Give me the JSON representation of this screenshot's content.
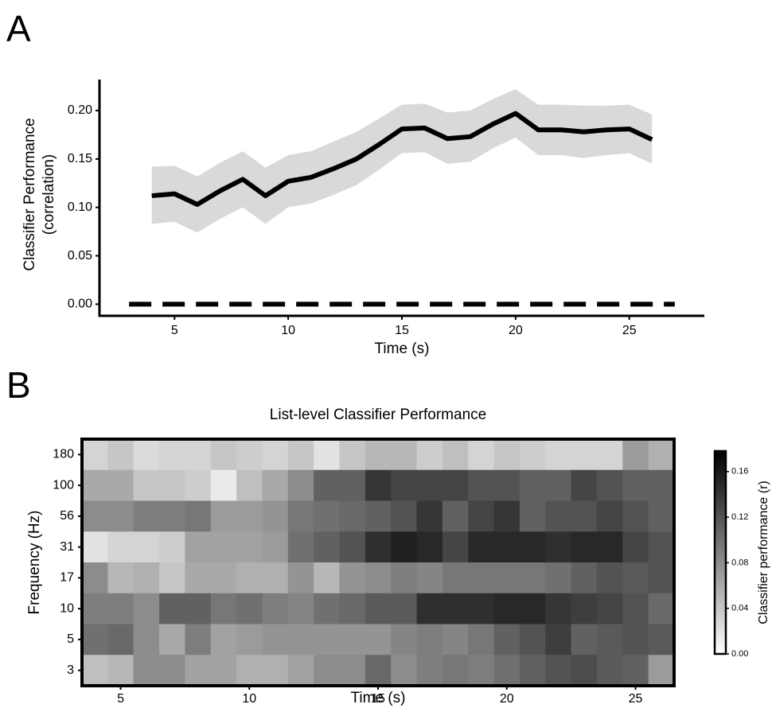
{
  "chart_data": [
    {
      "type": "line",
      "panel_label": "A",
      "xlabel": "Time (s)",
      "ylabel": [
        "Classifier Performance",
        "(correlation)"
      ],
      "x": [
        4,
        5,
        6,
        7,
        8,
        9,
        10,
        11,
        12,
        13,
        14,
        15,
        16,
        17,
        18,
        19,
        20,
        21,
        22,
        23,
        24,
        25,
        26
      ],
      "values": [
        0.112,
        0.114,
        0.103,
        0.117,
        0.129,
        0.112,
        0.127,
        0.131,
        0.14,
        0.15,
        0.165,
        0.181,
        0.182,
        0.171,
        0.173,
        0.186,
        0.197,
        0.18,
        0.18,
        0.178,
        0.18,
        0.181,
        0.17
      ],
      "upper": [
        0.142,
        0.143,
        0.132,
        0.146,
        0.158,
        0.141,
        0.154,
        0.158,
        0.168,
        0.178,
        0.192,
        0.206,
        0.207,
        0.198,
        0.2,
        0.212,
        0.222,
        0.206,
        0.206,
        0.205,
        0.205,
        0.206,
        0.196
      ],
      "lower": [
        0.083,
        0.085,
        0.074,
        0.088,
        0.1,
        0.083,
        0.1,
        0.104,
        0.113,
        0.123,
        0.139,
        0.156,
        0.157,
        0.145,
        0.147,
        0.161,
        0.172,
        0.154,
        0.154,
        0.151,
        0.154,
        0.156,
        0.145
      ],
      "color": "#000000",
      "band_color": "#d9d9d9",
      "baseline": {
        "x": [
          3,
          27
        ],
        "values": [
          0,
          0
        ]
      },
      "xlim": [
        1.7,
        28.3
      ],
      "ylim": [
        -0.012,
        0.232
      ],
      "xticks": [
        5,
        10,
        15,
        20,
        25
      ],
      "yticks": [
        {
          "value": 0,
          "label": "0.00"
        },
        {
          "value": 0.05,
          "label": "0.05"
        },
        {
          "value": 0.1,
          "label": "0.10"
        },
        {
          "value": 0.15,
          "label": "0.15"
        },
        {
          "value": 0.2,
          "label": "0.20"
        }
      ]
    },
    {
      "type": "heatmap",
      "panel_label": "B",
      "title": "List-level Classifier Performance",
      "xlabel": "Time (s)",
      "ylabel": "Frequency (Hz)",
      "x": [
        4,
        5,
        6,
        7,
        8,
        9,
        10,
        11,
        12,
        13,
        14,
        15,
        16,
        17,
        18,
        19,
        20,
        21,
        22,
        23,
        24,
        25,
        26
      ],
      "y": [
        180,
        100,
        56,
        31,
        17,
        10,
        5,
        3
      ],
      "z": [
        [
          0.03,
          0.04,
          0.025,
          0.03,
          0.03,
          0.04,
          0.035,
          0.03,
          0.04,
          0.02,
          0.04,
          0.05,
          0.05,
          0.035,
          0.045,
          0.03,
          0.04,
          0.035,
          0.03,
          0.03,
          0.03,
          0.07,
          0.055
        ],
        [
          0.06,
          0.06,
          0.04,
          0.04,
          0.035,
          0.015,
          0.045,
          0.06,
          0.08,
          0.11,
          0.11,
          0.14,
          0.13,
          0.13,
          0.13,
          0.12,
          0.12,
          0.11,
          0.11,
          0.13,
          0.12,
          0.11,
          0.11
        ],
        [
          0.08,
          0.08,
          0.09,
          0.09,
          0.095,
          0.07,
          0.07,
          0.075,
          0.095,
          0.1,
          0.105,
          0.11,
          0.12,
          0.14,
          0.11,
          0.13,
          0.14,
          0.11,
          0.12,
          0.12,
          0.13,
          0.12,
          0.11
        ],
        [
          0.02,
          0.03,
          0.03,
          0.035,
          0.065,
          0.065,
          0.065,
          0.07,
          0.1,
          0.11,
          0.12,
          0.145,
          0.155,
          0.15,
          0.13,
          0.15,
          0.15,
          0.15,
          0.145,
          0.15,
          0.15,
          0.13,
          0.12
        ],
        [
          0.08,
          0.05,
          0.055,
          0.04,
          0.06,
          0.06,
          0.055,
          0.055,
          0.075,
          0.05,
          0.075,
          0.08,
          0.09,
          0.085,
          0.095,
          0.095,
          0.095,
          0.095,
          0.1,
          0.11,
          0.12,
          0.115,
          0.12
        ],
        [
          0.09,
          0.09,
          0.08,
          0.11,
          0.11,
          0.095,
          0.1,
          0.09,
          0.085,
          0.1,
          0.105,
          0.115,
          0.115,
          0.145,
          0.145,
          0.145,
          0.15,
          0.15,
          0.14,
          0.135,
          0.13,
          0.12,
          0.105
        ],
        [
          0.1,
          0.105,
          0.08,
          0.06,
          0.09,
          0.065,
          0.07,
          0.075,
          0.075,
          0.075,
          0.075,
          0.075,
          0.085,
          0.09,
          0.085,
          0.095,
          0.11,
          0.12,
          0.135,
          0.11,
          0.115,
          0.12,
          0.115
        ],
        [
          0.045,
          0.05,
          0.08,
          0.08,
          0.065,
          0.065,
          0.055,
          0.055,
          0.065,
          0.08,
          0.08,
          0.105,
          0.08,
          0.09,
          0.095,
          0.09,
          0.1,
          0.11,
          0.12,
          0.125,
          0.115,
          0.11,
          0.07
        ]
      ],
      "xlim": [
        3.5,
        26.5
      ],
      "xticks": [
        5,
        10,
        15,
        20,
        25
      ],
      "clim": [
        0,
        0.178
      ],
      "colorbar_label": "Classifier performance (r)",
      "cticks": [
        {
          "value": 0,
          "label": "0.00"
        },
        {
          "value": 0.04,
          "label": "0.04"
        },
        {
          "value": 0.08,
          "label": "0.08"
        },
        {
          "value": 0.12,
          "label": "0.12"
        },
        {
          "value": 0.16,
          "label": "0.16"
        }
      ]
    }
  ]
}
